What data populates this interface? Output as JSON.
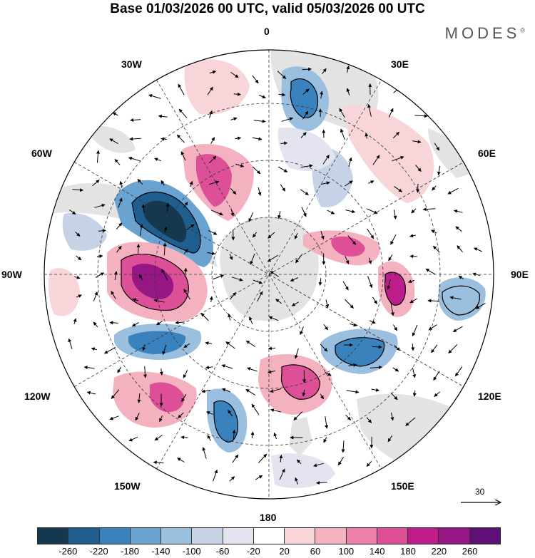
{
  "title": "Base 01/03/2026 00 UTC, valid 05/03/2026 00 UTC",
  "brand": "MODES",
  "brand_mark": "®",
  "map": {
    "projection": "south-polar-stereographic",
    "longitude_labels": {
      "top": "0",
      "top_right_1": "30E",
      "top_right_2": "60E",
      "right": "90E",
      "bottom_right_1": "120E",
      "bottom_right_2": "150E",
      "bottom": "180",
      "bottom_left_1": "150W",
      "bottom_left_2": "120W",
      "left": "90W",
      "top_left_2": "60W",
      "top_left_1": "30W"
    },
    "reference_vector_label": "30"
  },
  "colorbar": {
    "colors": [
      "#16384f",
      "#1f5e8e",
      "#3a82be",
      "#6aa3d0",
      "#9bbfdf",
      "#c6d2e6",
      "#e4e4f1",
      "#ffffff",
      "#f8d5d8",
      "#f4b1c0",
      "#ec82aa",
      "#dd4f97",
      "#bd1d8b",
      "#961784",
      "#5e1078"
    ],
    "tick_labels": [
      "-260",
      "-220",
      "-180",
      "-140",
      "-100",
      "-60",
      "-20",
      "20",
      "60",
      "100",
      "140",
      "180",
      "220",
      "260"
    ]
  }
}
